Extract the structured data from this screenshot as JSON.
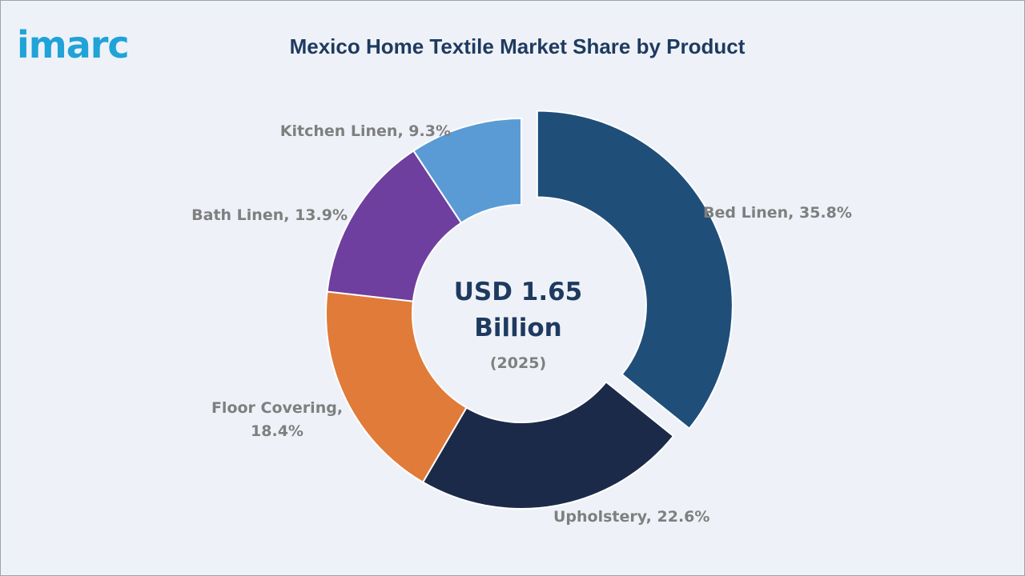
{
  "logo": {
    "text": "imarc",
    "color": "#1fa3d8"
  },
  "chart_data": {
    "type": "pie",
    "subtype": "donut",
    "title": "Mexico Home Textile Market Share by Product",
    "center_value": "USD 1.65",
    "center_unit": "Billion",
    "center_year": "(2025)",
    "slices": [
      {
        "label": "Bed Linen",
        "value": 35.8,
        "display": "Bed Linen, 35.8%",
        "color": "#1f4e79",
        "exploded": true
      },
      {
        "label": "Upholstery",
        "value": 22.6,
        "display": "Upholstery, 22.6%",
        "color": "#1c2a4a",
        "exploded": false
      },
      {
        "label": "Floor Covering",
        "value": 18.4,
        "display_lines": [
          "Floor Covering,",
          "18.4%"
        ],
        "color": "#e07b39",
        "exploded": false
      },
      {
        "label": "Bath Linen",
        "value": 13.9,
        "display": "Bath Linen, 13.9%",
        "color": "#6e3f9e",
        "exploded": false
      },
      {
        "label": "Kitchen Linen",
        "value": 9.3,
        "display": "Kitchen Linen, 9.3%",
        "color": "#5b9bd5",
        "exploded": false
      }
    ],
    "legend": "none",
    "grid": false
  }
}
